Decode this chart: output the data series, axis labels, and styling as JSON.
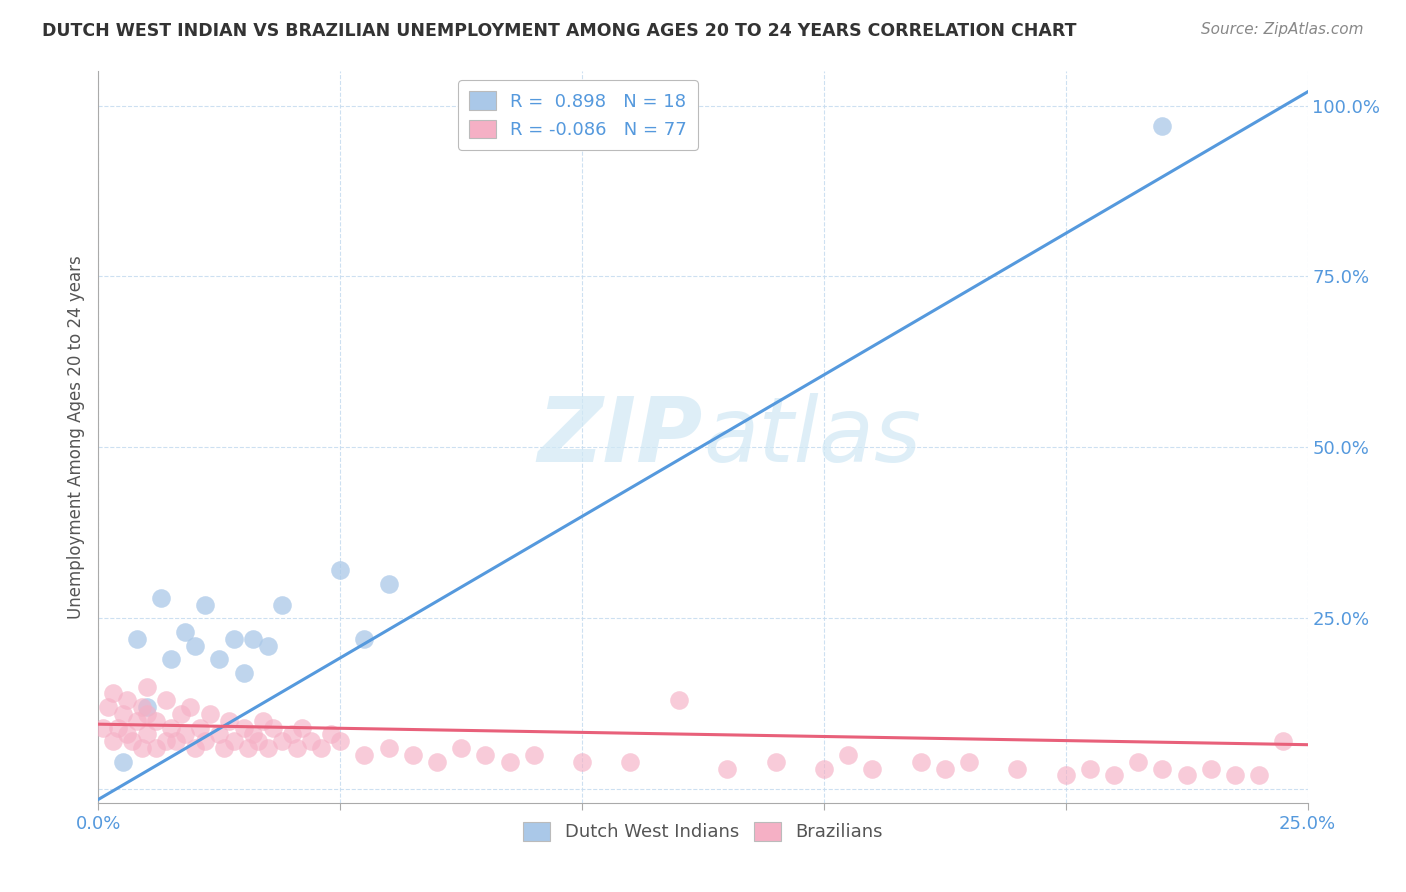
{
  "title": "DUTCH WEST INDIAN VS BRAZILIAN UNEMPLOYMENT AMONG AGES 20 TO 24 YEARS CORRELATION CHART",
  "source": "Source: ZipAtlas.com",
  "ylabel": "Unemployment Among Ages 20 to 24 years",
  "xlim": [
    0.0,
    0.25
  ],
  "ylim": [
    -0.02,
    1.05
  ],
  "dutch_R": 0.898,
  "dutch_N": 18,
  "brazilian_R": -0.086,
  "brazilian_N": 77,
  "dutch_color": "#aac8e8",
  "brazilian_color": "#f5b0c5",
  "dutch_line_color": "#5599dd",
  "brazilian_line_color": "#e8607a",
  "tick_color": "#5599dd",
  "ylabel_color": "#555555",
  "watermark_color": "#d0e8f5",
  "dutch_line_x0": 0.0,
  "dutch_line_y0": -0.015,
  "dutch_line_x1": 0.25,
  "dutch_line_y1": 1.02,
  "braz_line_x0": 0.0,
  "braz_line_y0": 0.095,
  "braz_line_x1": 0.25,
  "braz_line_y1": 0.065,
  "dutch_x": [
    0.005,
    0.008,
    0.01,
    0.013,
    0.015,
    0.018,
    0.02,
    0.022,
    0.025,
    0.028,
    0.03,
    0.032,
    0.035,
    0.038,
    0.05,
    0.055,
    0.06,
    0.22
  ],
  "dutch_y": [
    0.04,
    0.22,
    0.12,
    0.28,
    0.19,
    0.23,
    0.21,
    0.27,
    0.19,
    0.22,
    0.17,
    0.22,
    0.21,
    0.27,
    0.32,
    0.22,
    0.3,
    0.97
  ],
  "brazilian_x": [
    0.001,
    0.002,
    0.003,
    0.003,
    0.004,
    0.005,
    0.006,
    0.006,
    0.007,
    0.008,
    0.009,
    0.009,
    0.01,
    0.01,
    0.01,
    0.012,
    0.012,
    0.014,
    0.014,
    0.015,
    0.016,
    0.017,
    0.018,
    0.019,
    0.02,
    0.021,
    0.022,
    0.023,
    0.025,
    0.026,
    0.027,
    0.028,
    0.03,
    0.031,
    0.032,
    0.033,
    0.034,
    0.035,
    0.036,
    0.038,
    0.04,
    0.041,
    0.042,
    0.044,
    0.046,
    0.048,
    0.05,
    0.055,
    0.06,
    0.065,
    0.07,
    0.075,
    0.08,
    0.085,
    0.09,
    0.1,
    0.11,
    0.12,
    0.13,
    0.14,
    0.15,
    0.155,
    0.16,
    0.17,
    0.175,
    0.18,
    0.19,
    0.2,
    0.205,
    0.21,
    0.215,
    0.22,
    0.225,
    0.23,
    0.235,
    0.24,
    0.245
  ],
  "brazilian_y": [
    0.09,
    0.12,
    0.07,
    0.14,
    0.09,
    0.11,
    0.08,
    0.13,
    0.07,
    0.1,
    0.06,
    0.12,
    0.08,
    0.11,
    0.15,
    0.06,
    0.1,
    0.07,
    0.13,
    0.09,
    0.07,
    0.11,
    0.08,
    0.12,
    0.06,
    0.09,
    0.07,
    0.11,
    0.08,
    0.06,
    0.1,
    0.07,
    0.09,
    0.06,
    0.08,
    0.07,
    0.1,
    0.06,
    0.09,
    0.07,
    0.08,
    0.06,
    0.09,
    0.07,
    0.06,
    0.08,
    0.07,
    0.05,
    0.06,
    0.05,
    0.04,
    0.06,
    0.05,
    0.04,
    0.05,
    0.04,
    0.04,
    0.13,
    0.03,
    0.04,
    0.03,
    0.05,
    0.03,
    0.04,
    0.03,
    0.04,
    0.03,
    0.02,
    0.03,
    0.02,
    0.04,
    0.03,
    0.02,
    0.03,
    0.02,
    0.02,
    0.07
  ]
}
